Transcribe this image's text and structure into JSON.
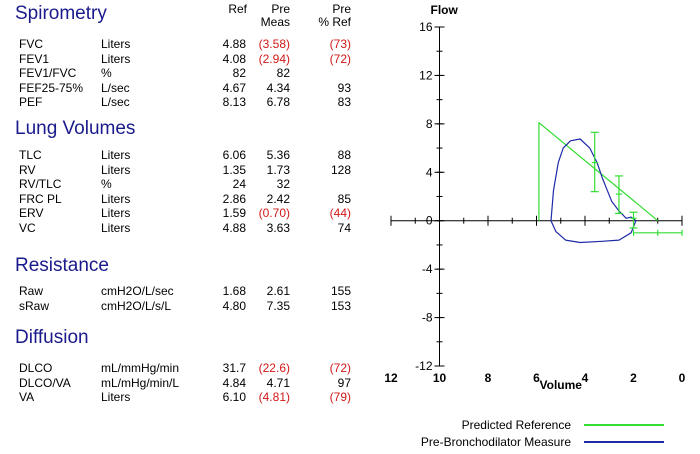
{
  "headers": {
    "ref": "Ref",
    "pre_meas": [
      "Pre",
      "Meas"
    ],
    "pre_ref": [
      "Pre",
      "% Ref"
    ]
  },
  "sections": [
    {
      "title": "Spirometry",
      "rows": [
        {
          "name": "FVC",
          "unit": "Liters",
          "ref": "4.88",
          "meas": "(3.58)",
          "pct": "(73)",
          "abnormal": true
        },
        {
          "name": "FEV1",
          "unit": "Liters",
          "ref": "4.08",
          "meas": "(2.94)",
          "pct": "(72)",
          "abnormal": true
        },
        {
          "name": "FEV1/FVC",
          "unit": "%",
          "ref": "82",
          "meas": "82",
          "pct": "",
          "abnormal": false
        },
        {
          "name": "FEF25-75%",
          "unit": "L/sec",
          "ref": "4.67",
          "meas": "4.34",
          "pct": "93",
          "abnormal": false
        },
        {
          "name": "PEF",
          "unit": "L/sec",
          "ref": "8.13",
          "meas": "6.78",
          "pct": "83",
          "abnormal": false
        }
      ]
    },
    {
      "title": "Lung Volumes",
      "rows": [
        {
          "name": "TLC",
          "unit": "Liters",
          "ref": "6.06",
          "meas": "5.36",
          "pct": "88",
          "abnormal": false
        },
        {
          "name": "RV",
          "unit": "Liters",
          "ref": "1.35",
          "meas": "1.73",
          "pct": "128",
          "abnormal": false
        },
        {
          "name": "RV/TLC",
          "unit": "%",
          "ref": "24",
          "meas": "32",
          "pct": "",
          "abnormal": false
        },
        {
          "name": "FRC PL",
          "unit": "Liters",
          "ref": "2.86",
          "meas": "2.42",
          "pct": "85",
          "abnormal": false
        },
        {
          "name": "ERV",
          "unit": "Liters",
          "ref": "1.59",
          "meas": "(0.70)",
          "pct": "(44)",
          "abnormal": true
        },
        {
          "name": "VC",
          "unit": "Liters",
          "ref": "4.88",
          "meas": "3.63",
          "pct": "74",
          "abnormal": false
        }
      ]
    },
    {
      "title": "Resistance",
      "rows": [
        {
          "name": "Raw",
          "unit": "cmH2O/L/sec",
          "ref": "1.68",
          "meas": "2.61",
          "pct": "155",
          "abnormal": false
        },
        {
          "name": "sRaw",
          "unit": "cmH2O/L/s/L",
          "ref": "4.80",
          "meas": "7.35",
          "pct": "153",
          "abnormal": false
        }
      ]
    },
    {
      "title": "Diffusion",
      "rows": [
        {
          "name": "DLCO",
          "unit": "mL/mmHg/min",
          "ref": "31.7",
          "meas": "(22.6)",
          "pct": "(72)",
          "abnormal": true
        },
        {
          "name": "DLCO/VA",
          "unit": "mL/mHg/min/L",
          "ref": "4.84",
          "meas": "4.71",
          "pct": "97",
          "abnormal": false
        },
        {
          "name": "VA",
          "unit": "Liters",
          "ref": "6.10",
          "meas": "(4.81)",
          "pct": "(79)",
          "abnormal": true
        }
      ]
    }
  ],
  "colors": {
    "title": "#1a1a8c",
    "abnormal": "#d01818",
    "reference": "#33dd33",
    "measured": "#1e2aa8"
  },
  "chart_data": {
    "type": "line",
    "title": "",
    "xlabel": "Volume",
    "ylabel": "Flow",
    "xlim": [
      12,
      0
    ],
    "ylim": [
      -12,
      16
    ],
    "x_reversed": true,
    "xticks": [
      12,
      10,
      8,
      6,
      4,
      2,
      0
    ],
    "yticks": [
      16,
      12,
      8,
      4,
      0,
      -4,
      -8,
      -12
    ],
    "series": [
      {
        "name": "Predicted Reference",
        "color": "#33dd33",
        "points": [
          [
            5.9,
            0
          ],
          [
            5.9,
            8.1
          ],
          [
            1.0,
            0
          ]
        ]
      },
      {
        "name": "Pre-Bronchodilator Measure",
        "color": "#1e2aa8",
        "points": [
          [
            5.4,
            0
          ],
          [
            5.3,
            2.5
          ],
          [
            5.1,
            4.8
          ],
          [
            4.9,
            6.0
          ],
          [
            4.6,
            6.6
          ],
          [
            4.2,
            6.75
          ],
          [
            3.8,
            6.0
          ],
          [
            3.5,
            4.8
          ],
          [
            3.3,
            3.6
          ],
          [
            3.1,
            2.6
          ],
          [
            2.9,
            1.6
          ],
          [
            2.6,
            0.8
          ],
          [
            2.3,
            0.2
          ],
          [
            2.1,
            0.3
          ],
          [
            1.9,
            0.0
          ],
          [
            2.0,
            -0.5
          ],
          [
            2.1,
            -1.0
          ],
          [
            2.6,
            -1.6
          ],
          [
            3.3,
            -1.7
          ],
          [
            4.2,
            -1.8
          ],
          [
            4.8,
            -1.6
          ],
          [
            5.2,
            -0.9
          ],
          [
            5.4,
            0
          ]
        ]
      }
    ],
    "error_bars": [
      {
        "x": 3.6,
        "y": 4.8,
        "y_low": 2.4,
        "y_high": 7.3
      },
      {
        "x": 2.6,
        "y": 2.2,
        "y_low": 0.6,
        "y_high": 3.7
      },
      {
        "x": 2.0,
        "y": 0.2,
        "y_low": -0.6,
        "y_high": 0.7
      },
      {
        "x": 1.0,
        "y": -1.0,
        "x_low": 2.0,
        "x_high": 0.0
      }
    ]
  }
}
